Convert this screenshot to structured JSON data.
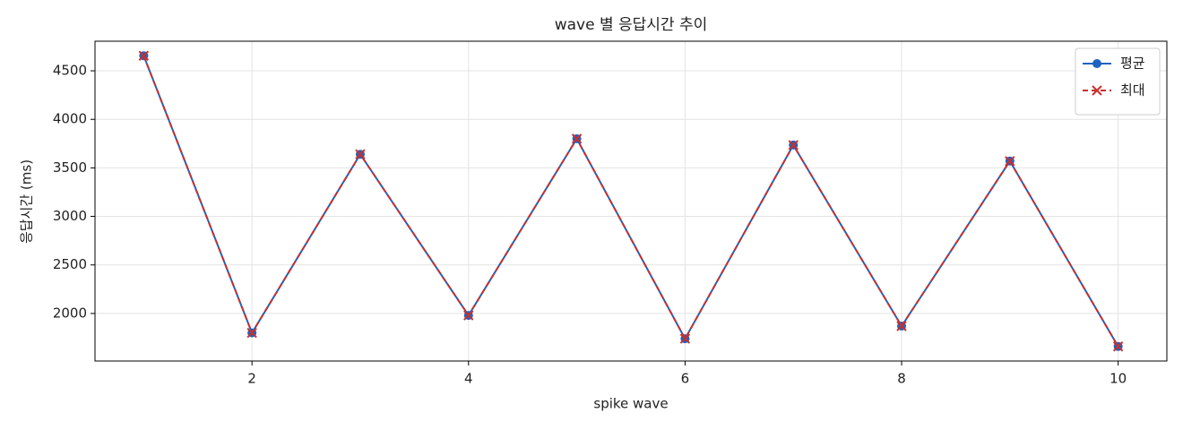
{
  "chart_data": {
    "type": "line",
    "title": "wave 별 응답시간 추이",
    "xlabel": "spike wave",
    "ylabel": "응답시간 (ms)",
    "x": [
      1,
      2,
      3,
      4,
      5,
      6,
      7,
      8,
      9,
      10
    ],
    "series": [
      {
        "name": "평균",
        "color": "#1f63c0",
        "marker": "o",
        "linestyle": "solid",
        "values": [
          4655,
          1800,
          3640,
          1980,
          3800,
          1740,
          3735,
          1870,
          3570,
          1660
        ]
      },
      {
        "name": "최대",
        "color": "#c9302c",
        "marker": "x",
        "linestyle": "dashed",
        "values": [
          4655,
          1800,
          3640,
          1980,
          3800,
          1740,
          3735,
          1870,
          3570,
          1660
        ]
      }
    ],
    "xlim": [
      0.55,
      10.45
    ],
    "xticks": [
      2,
      4,
      6,
      8,
      10
    ],
    "ylim": [
      1510,
      4805
    ],
    "yticks": [
      2000,
      2500,
      3000,
      3500,
      4000,
      4500
    ],
    "grid": true,
    "legend": "upper right"
  }
}
